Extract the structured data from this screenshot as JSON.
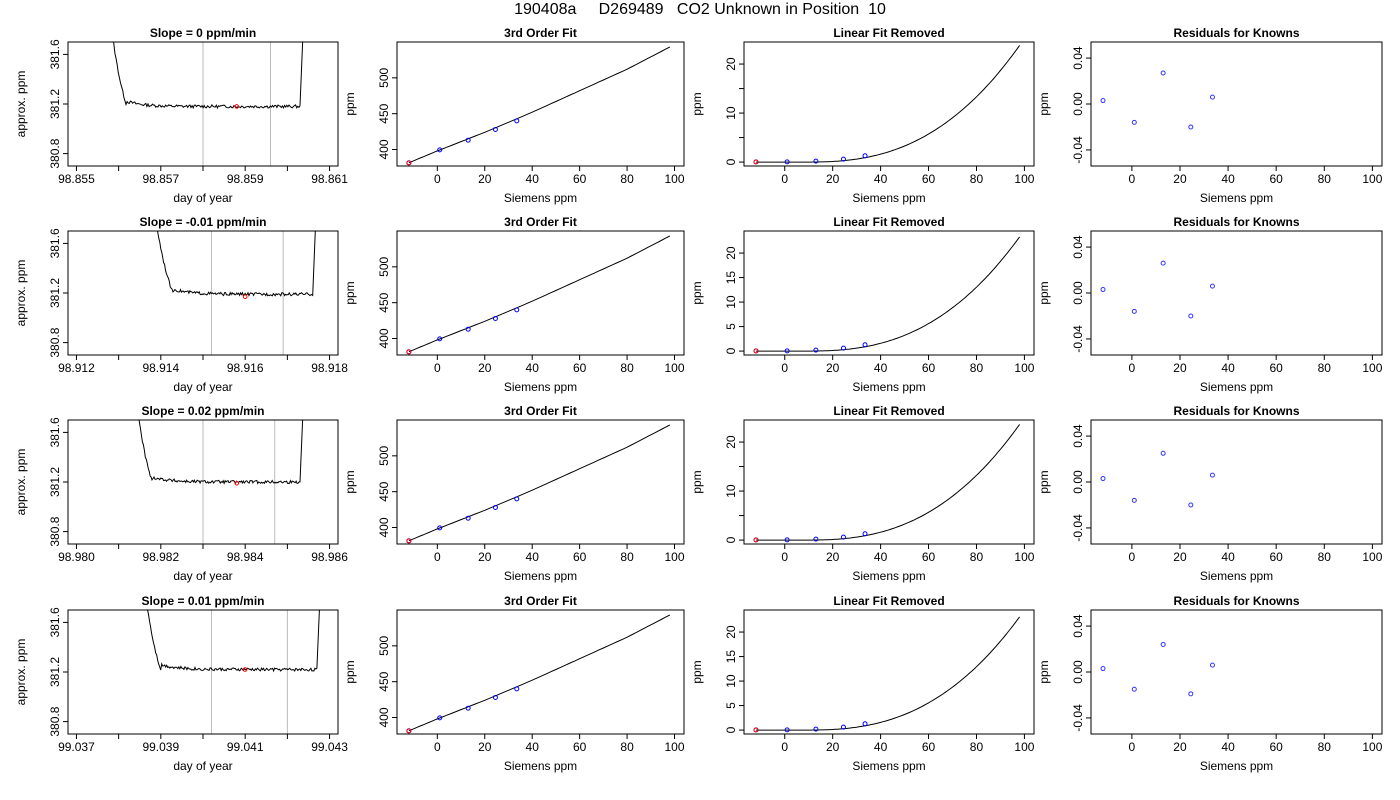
{
  "figure": {
    "title": "190408a     D269489   CO2 Unknown in Position  10"
  },
  "chart_data": [
    {
      "type": "line",
      "panel": "time",
      "title": "Slope =  0  ppm/min",
      "xlabel": "day of year",
      "ylabel": "approx. ppm",
      "xlim": [
        98.8548,
        98.8612
      ],
      "ylim": [
        380.7,
        381.7
      ],
      "xticks": [
        98.855,
        98.856,
        98.857,
        98.858,
        98.859,
        98.86,
        98.861
      ],
      "xtick_labels": [
        "98.855",
        "",
        "98.857",
        "",
        "98.859",
        "",
        "98.861"
      ],
      "yticks": [
        380.8,
        381.2,
        381.6
      ],
      "ytick_labels": [
        "380.8",
        "381.2",
        "381.6"
      ],
      "vlines": [
        98.858,
        98.8596
      ],
      "level": 381.18,
      "marker": [
        98.8588,
        381.18
      ],
      "x_start": 98.8556,
      "x_end": 98.8603,
      "settle_end": 98.8562
    },
    {
      "type": "line",
      "panel": "fit",
      "title": "3rd Order Fit",
      "xlabel": "Siemens ppm",
      "ylabel": "ppm",
      "xlim": [
        -17,
        104
      ],
      "ylim": [
        377,
        550
      ],
      "xticks": [
        0,
        20,
        40,
        60,
        80,
        100
      ],
      "yticks": [
        400,
        450,
        500
      ],
      "knowns_x": [
        -12,
        1,
        13,
        24.5,
        33.5
      ],
      "knowns_y": [
        381.5,
        399.5,
        413,
        428,
        440
      ],
      "unknown": [
        -12,
        381.2
      ],
      "curve": [
        [
          -12,
          381.5
        ],
        [
          0,
          398
        ],
        [
          20,
          424
        ],
        [
          40,
          452
        ],
        [
          60,
          482
        ],
        [
          80,
          512
        ],
        [
          98,
          543
        ]
      ]
    },
    {
      "type": "line",
      "panel": "linfit",
      "title": "Linear Fit Removed",
      "xlabel": "Siemens ppm",
      "ylabel": "ppm",
      "xlim": [
        -17,
        104
      ],
      "ylim": [
        -0.8,
        24.5
      ],
      "xticks": [
        0,
        20,
        40,
        60,
        80,
        100
      ],
      "yticks": [
        0,
        5,
        10,
        15,
        20
      ],
      "ytick_labels": [
        "0",
        "",
        "10",
        "",
        "20"
      ],
      "knowns_x": [
        -12,
        1,
        13,
        24.5,
        33.5
      ],
      "knowns_y": [
        0.05,
        0.05,
        0.2,
        0.6,
        1.3
      ],
      "unknown": [
        -12,
        0.02
      ],
      "cubic_max": 23.8
    },
    {
      "type": "scatter",
      "panel": "resid",
      "title": "Residuals for Knowns",
      "xlabel": "Siemens ppm",
      "ylabel": "ppm",
      "xlim": [
        -17,
        104
      ],
      "ylim": [
        -0.054,
        0.054
      ],
      "xticks": [
        0,
        20,
        40,
        60,
        80,
        100
      ],
      "yticks": [
        -0.04,
        0.0,
        0.04
      ],
      "ytick_labels": [
        "-0.04",
        "0.00",
        "0.04"
      ],
      "x": [
        -12,
        1,
        13,
        24.5,
        33.5
      ],
      "y": [
        0.003,
        -0.016,
        0.027,
        -0.02,
        0.006
      ]
    },
    {
      "type": "line",
      "panel": "time",
      "title": "Slope =  -0.01  ppm/min",
      "xlabel": "day of year",
      "ylabel": "approx. ppm",
      "xlim": [
        98.9118,
        98.9182
      ],
      "ylim": [
        380.7,
        381.7
      ],
      "xticks": [
        98.912,
        98.913,
        98.914,
        98.915,
        98.916,
        98.917,
        98.918
      ],
      "xtick_labels": [
        "98.912",
        "",
        "98.914",
        "",
        "98.916",
        "",
        "98.918"
      ],
      "yticks": [
        380.8,
        381.2,
        381.6
      ],
      "ytick_labels": [
        "380.8",
        "381.2",
        "381.6"
      ],
      "vlines": [
        98.9152,
        98.9169
      ],
      "level": 381.19,
      "marker": [
        98.916,
        381.17
      ],
      "x_start": 98.9136,
      "x_end": 98.9176,
      "settle_end": 98.9143
    },
    {
      "type": "line",
      "panel": "fit",
      "title": "3rd Order Fit",
      "xlabel": "Siemens ppm",
      "ylabel": "ppm",
      "xlim": [
        -17,
        104
      ],
      "ylim": [
        377,
        550
      ],
      "xticks": [
        0,
        20,
        40,
        60,
        80,
        100
      ],
      "yticks": [
        400,
        450,
        500
      ],
      "knowns_x": [
        -12,
        1,
        13,
        24.5,
        33.5
      ],
      "knowns_y": [
        381.5,
        399.5,
        413,
        428,
        440
      ],
      "unknown": [
        -12,
        381.2
      ],
      "curve": [
        [
          -12,
          381.5
        ],
        [
          0,
          398
        ],
        [
          20,
          424
        ],
        [
          40,
          452
        ],
        [
          60,
          482
        ],
        [
          80,
          512
        ],
        [
          98,
          543
        ]
      ]
    },
    {
      "type": "line",
      "panel": "linfit",
      "title": "Linear Fit Removed",
      "xlabel": "Siemens ppm",
      "ylabel": "ppm",
      "xlim": [
        -17,
        104
      ],
      "ylim": [
        -0.8,
        24.5
      ],
      "xticks": [
        0,
        20,
        40,
        60,
        80,
        100
      ],
      "yticks": [
        0,
        5,
        10,
        15,
        20
      ],
      "ytick_labels": [
        "0",
        "5",
        "10",
        "15",
        "20"
      ],
      "knowns_x": [
        -12,
        1,
        13,
        24.5,
        33.5
      ],
      "knowns_y": [
        0.05,
        0.05,
        0.2,
        0.6,
        1.3
      ],
      "unknown": [
        -12,
        0.02
      ],
      "cubic_max": 23.3
    },
    {
      "type": "scatter",
      "panel": "resid",
      "title": "Residuals for Knowns",
      "xlabel": "Siemens ppm",
      "ylabel": "ppm",
      "xlim": [
        -17,
        104
      ],
      "ylim": [
        -0.054,
        0.054
      ],
      "xticks": [
        0,
        20,
        40,
        60,
        80,
        100
      ],
      "yticks": [
        -0.04,
        0.0,
        0.04
      ],
      "ytick_labels": [
        "-0.04",
        "0.00",
        "0.04"
      ],
      "x": [
        -12,
        1,
        13,
        24.5,
        33.5
      ],
      "y": [
        0.003,
        -0.016,
        0.026,
        -0.02,
        0.006
      ]
    },
    {
      "type": "line",
      "panel": "time",
      "title": "Slope =  0.02  ppm/min",
      "xlabel": "day of year",
      "ylabel": "approx. ppm",
      "xlim": [
        98.9798,
        98.9862
      ],
      "ylim": [
        380.7,
        381.7
      ],
      "xticks": [
        98.98,
        98.981,
        98.982,
        98.983,
        98.984,
        98.985,
        98.986
      ],
      "xtick_labels": [
        "98.980",
        "",
        "98.982",
        "",
        "98.984",
        "",
        "98.986"
      ],
      "yticks": [
        380.8,
        381.2,
        381.6
      ],
      "ytick_labels": [
        "380.8",
        "381.2",
        "381.6"
      ],
      "vlines": [
        98.983,
        98.9847
      ],
      "level": 381.2,
      "marker": [
        98.9838,
        381.19
      ],
      "x_start": 98.9812,
      "x_end": 98.9853,
      "settle_end": 98.9818
    },
    {
      "type": "line",
      "panel": "fit",
      "title": "3rd Order Fit",
      "xlabel": "Siemens ppm",
      "ylabel": "ppm",
      "xlim": [
        -17,
        104
      ],
      "ylim": [
        377,
        550
      ],
      "xticks": [
        0,
        20,
        40,
        60,
        80,
        100
      ],
      "yticks": [
        400,
        450,
        500
      ],
      "knowns_x": [
        -12,
        1,
        13,
        24.5,
        33.5
      ],
      "knowns_y": [
        381.5,
        399.5,
        413,
        428,
        440
      ],
      "unknown": [
        -12,
        381.2
      ],
      "curve": [
        [
          -12,
          381.5
        ],
        [
          0,
          398
        ],
        [
          20,
          424
        ],
        [
          40,
          452
        ],
        [
          60,
          482
        ],
        [
          80,
          512
        ],
        [
          98,
          543
        ]
      ]
    },
    {
      "type": "line",
      "panel": "linfit",
      "title": "Linear Fit Removed",
      "xlabel": "Siemens ppm",
      "ylabel": "ppm",
      "xlim": [
        -17,
        104
      ],
      "ylim": [
        -0.8,
        24.5
      ],
      "xticks": [
        0,
        20,
        40,
        60,
        80,
        100
      ],
      "yticks": [
        0,
        5,
        10,
        15,
        20
      ],
      "ytick_labels": [
        "0",
        "",
        "10",
        "",
        "20"
      ],
      "knowns_x": [
        -12,
        1,
        13,
        24.5,
        33.5
      ],
      "knowns_y": [
        0.05,
        0.05,
        0.2,
        0.6,
        1.3
      ],
      "unknown": [
        -12,
        0.02
      ],
      "cubic_max": 23.6
    },
    {
      "type": "scatter",
      "panel": "resid",
      "title": "Residuals for Knowns",
      "xlabel": "Siemens ppm",
      "ylabel": "ppm",
      "xlim": [
        -17,
        104
      ],
      "ylim": [
        -0.054,
        0.054
      ],
      "xticks": [
        0,
        20,
        40,
        60,
        80,
        100
      ],
      "yticks": [
        -0.04,
        0.0,
        0.04
      ],
      "ytick_labels": [
        "-0.04",
        "0.00",
        "0.04"
      ],
      "x": [
        -12,
        1,
        13,
        24.5,
        33.5
      ],
      "y": [
        0.003,
        -0.016,
        0.025,
        -0.02,
        0.006
      ]
    },
    {
      "type": "line",
      "panel": "time",
      "title": "Slope =  0.01  ppm/min",
      "xlabel": "day of year",
      "ylabel": "approx. ppm",
      "xlim": [
        99.0368,
        99.0432
      ],
      "ylim": [
        380.7,
        381.7
      ],
      "xticks": [
        99.037,
        99.038,
        99.039,
        99.04,
        99.041,
        99.042,
        99.043
      ],
      "xtick_labels": [
        "99.037",
        "",
        "99.039",
        "",
        "99.041",
        "",
        "99.043"
      ],
      "yticks": [
        380.8,
        381.2,
        381.6
      ],
      "ytick_labels": [
        "380.8",
        "381.2",
        "381.6"
      ],
      "vlines": [
        99.0402,
        99.042
      ],
      "level": 381.22,
      "marker": [
        99.041,
        381.22
      ],
      "x_start": 99.0384,
      "x_end": 99.0427,
      "settle_end": 99.039
    },
    {
      "type": "line",
      "panel": "fit",
      "title": "3rd Order Fit",
      "xlabel": "Siemens ppm",
      "ylabel": "ppm",
      "xlim": [
        -17,
        104
      ],
      "ylim": [
        377,
        550
      ],
      "xticks": [
        0,
        20,
        40,
        60,
        80,
        100
      ],
      "yticks": [
        400,
        450,
        500
      ],
      "knowns_x": [
        -12,
        1,
        13,
        24.5,
        33.5
      ],
      "knowns_y": [
        381.5,
        399.5,
        413,
        428,
        440
      ],
      "unknown": [
        -12,
        381.2
      ],
      "curve": [
        [
          -12,
          381.5
        ],
        [
          0,
          398
        ],
        [
          20,
          424
        ],
        [
          40,
          452
        ],
        [
          60,
          482
        ],
        [
          80,
          512
        ],
        [
          98,
          543
        ]
      ]
    },
    {
      "type": "line",
      "panel": "linfit",
      "title": "Linear Fit Removed",
      "xlabel": "Siemens ppm",
      "ylabel": "ppm",
      "xlim": [
        -17,
        104
      ],
      "ylim": [
        -0.8,
        24.5
      ],
      "xticks": [
        0,
        20,
        40,
        60,
        80,
        100
      ],
      "yticks": [
        0,
        5,
        10,
        15,
        20
      ],
      "ytick_labels": [
        "0",
        "5",
        "10",
        "15",
        "20"
      ],
      "knowns_x": [
        -12,
        1,
        13,
        24.5,
        33.5
      ],
      "knowns_y": [
        0.05,
        0.05,
        0.2,
        0.6,
        1.3
      ],
      "unknown": [
        -12,
        0.02
      ],
      "cubic_max": 23.1
    },
    {
      "type": "scatter",
      "panel": "resid",
      "title": "Residuals for Knowns",
      "xlabel": "Siemens ppm",
      "ylabel": "ppm",
      "xlim": [
        -17,
        104
      ],
      "ylim": [
        -0.054,
        0.054
      ],
      "xticks": [
        0,
        20,
        40,
        60,
        80,
        100
      ],
      "yticks": [
        -0.04,
        0.0,
        0.04
      ],
      "ytick_labels": [
        "-0.04",
        "0.00",
        "0.04"
      ],
      "x": [
        -12,
        1,
        13,
        24.5,
        33.5
      ],
      "y": [
        0.003,
        -0.015,
        0.024,
        -0.019,
        0.006
      ]
    }
  ]
}
